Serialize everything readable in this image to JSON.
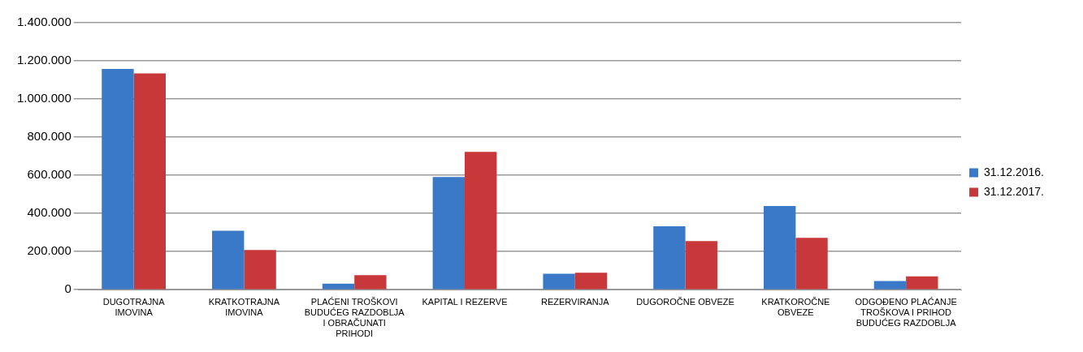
{
  "chart_data": {
    "type": "bar",
    "categories": [
      "DUGOTRAJNA IMOVINA",
      "KRATKOTRAJNA IMOVINA",
      "PLAĆENI TROŠKOVI BUDUĆEG RAZDOBLJA I OBRAČUNATI PRIHODI",
      "KAPITAL I REZERVE",
      "REZERVIRANJA",
      "DUGOROČNE OBVEZE",
      "KRATKOROČNE OBVEZE",
      "ODGOĐENO PLAĆANJE TROŠKOVA I PRIHOD BUDUĆEG RAZDOBLJA"
    ],
    "series": [
      {
        "name": "31.12.2016.",
        "color": "#3a78c8",
        "values": [
          1158000,
          309000,
          32000,
          591000,
          84000,
          333000,
          439000,
          45000
        ]
      },
      {
        "name": "31.12.2017.",
        "color": "#c8383a",
        "values": [
          1134000,
          208000,
          76000,
          723000,
          89000,
          255000,
          272000,
          70000
        ]
      }
    ],
    "ylim": [
      0,
      1400000
    ],
    "yticks": [
      {
        "value": 0,
        "label": "0"
      },
      {
        "value": 200000,
        "label": "200.000"
      },
      {
        "value": 400000,
        "label": "400.000"
      },
      {
        "value": 600000,
        "label": "600.000"
      },
      {
        "value": 800000,
        "label": "800.000"
      },
      {
        "value": 1000000,
        "label": "1.000.000"
      },
      {
        "value": 1200000,
        "label": "1.200.000"
      },
      {
        "value": 1400000,
        "label": "1.400.000"
      }
    ],
    "grid": "y",
    "legend": "right"
  }
}
